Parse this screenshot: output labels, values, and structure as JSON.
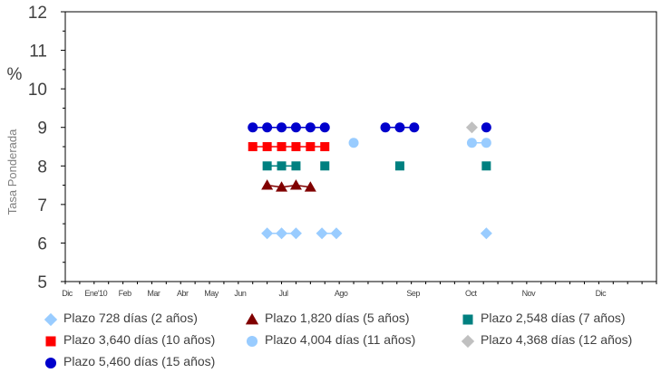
{
  "chart_data": {
    "type": "scatter",
    "title": "",
    "ylabel": "Tasa Ponderada",
    "yunit": "%",
    "ylim": [
      5,
      12
    ],
    "yticks": [
      5,
      6,
      7,
      8,
      9,
      10,
      11,
      12
    ],
    "xlim": [
      0,
      20.5
    ],
    "xtick_labels": [
      {
        "label": "Dic",
        "x": 0
      },
      {
        "label": "Ene'10",
        "x": 1
      },
      {
        "label": "Feb",
        "x": 2
      },
      {
        "label": "Mar",
        "x": 3
      },
      {
        "label": "Abr",
        "x": 4
      },
      {
        "label": "May",
        "x": 5
      },
      {
        "label": "Jun",
        "x": 6
      },
      {
        "label": "Jul",
        "x": 7.5
      },
      {
        "label": "Ago",
        "x": 9.5
      },
      {
        "label": "Sep",
        "x": 12
      },
      {
        "label": "Oct",
        "x": 14
      },
      {
        "label": "Nov",
        "x": 16
      },
      {
        "label": "Dic",
        "x": 18.5
      }
    ],
    "grid": false,
    "legend_position": "bottom",
    "series": [
      {
        "name": "Plazo 728 días (2 años)",
        "color": "#99ccff",
        "marker": "diamond",
        "points": [
          [
            7.0,
            6.25
          ],
          [
            7.5,
            6.25
          ],
          [
            8.0,
            6.25
          ],
          [
            8.9,
            6.25
          ],
          [
            9.4,
            6.25
          ],
          [
            14.6,
            6.25
          ]
        ]
      },
      {
        "name": "Plazo 1,820 días (5 años)",
        "color": "#800000",
        "marker": "triangle",
        "points": [
          [
            7.0,
            7.5
          ],
          [
            7.5,
            7.45
          ],
          [
            8.0,
            7.5
          ],
          [
            8.5,
            7.45
          ]
        ]
      },
      {
        "name": "Plazo 2,548 días (7 años)",
        "color": "#008080",
        "marker": "square",
        "points": [
          [
            7.0,
            8.0
          ],
          [
            7.5,
            8.0
          ],
          [
            8.0,
            8.0
          ],
          [
            9.0,
            8.0
          ],
          [
            11.6,
            8.0
          ],
          [
            14.6,
            8.0
          ]
        ]
      },
      {
        "name": "Plazo 3,640 días (10 años)",
        "color": "#ff0000",
        "marker": "square",
        "points": [
          [
            6.5,
            8.5
          ],
          [
            7.0,
            8.5
          ],
          [
            7.5,
            8.5
          ],
          [
            8.0,
            8.5
          ],
          [
            8.5,
            8.5
          ],
          [
            9.0,
            8.5
          ]
        ]
      },
      {
        "name": "Plazo 4,004 días (11 años)",
        "color": "#99ccff",
        "marker": "circle",
        "points": [
          [
            10.0,
            8.6
          ],
          [
            14.1,
            8.6
          ],
          [
            14.6,
            8.6
          ]
        ]
      },
      {
        "name": "Plazo 4,368 días (12 años)",
        "color": "#c0c0c0",
        "marker": "diamond",
        "points": [
          [
            14.1,
            9.0
          ]
        ]
      },
      {
        "name": "Plazo 5,460 días (15 años)",
        "color": "#0000cc",
        "marker": "circle",
        "points": [
          [
            6.5,
            9.0
          ],
          [
            7.0,
            9.0
          ],
          [
            7.5,
            9.0
          ],
          [
            8.0,
            9.0
          ],
          [
            8.5,
            9.0
          ],
          [
            9.0,
            9.0
          ],
          [
            11.1,
            9.0
          ],
          [
            11.6,
            9.0
          ],
          [
            12.1,
            9.0
          ],
          [
            14.6,
            9.0
          ]
        ]
      }
    ]
  }
}
